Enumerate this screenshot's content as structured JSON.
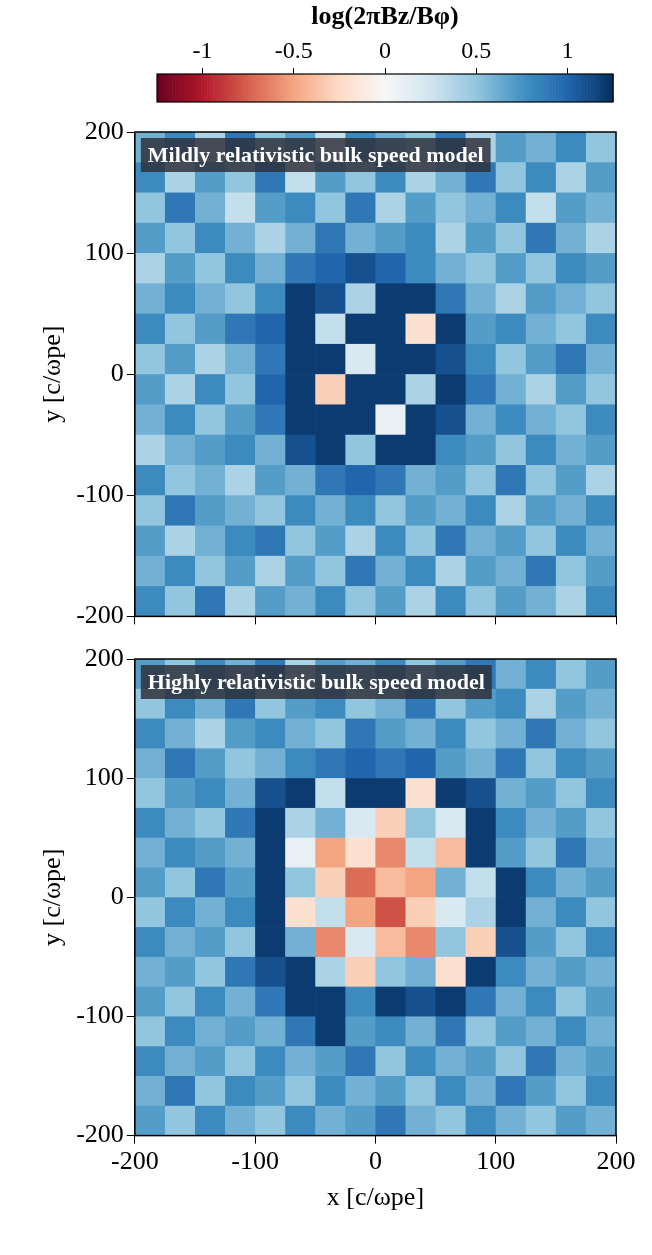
{
  "chart_data": [
    {
      "type": "colorbar",
      "title": "log(2πBz/Bφ)",
      "xlim": [
        -1.25,
        1.25
      ],
      "xticks": [
        -1,
        -0.5,
        0,
        0.5,
        1
      ],
      "colors": [
        "#67001f",
        "#b2182b",
        "#d6604d",
        "#f4a582",
        "#fddbc7",
        "#f7f7f7",
        "#d1e5f0",
        "#92c5de",
        "#4393c3",
        "#2166ac",
        "#053061"
      ]
    },
    {
      "type": "heatmap",
      "title": "Mildly relativistic bulk speed model",
      "ylabel": "y [c/ωpe]",
      "tick_labels": "y",
      "xlim": [
        -200,
        200
      ],
      "xticks": [
        -200,
        -100,
        0,
        100,
        200
      ],
      "ylim": [
        -200,
        200
      ],
      "yticks": [
        -200,
        -100,
        0,
        100,
        200
      ],
      "x": [
        -187.5,
        -162.5,
        -137.5,
        -112.5,
        -87.5,
        -62.5,
        -37.5,
        -12.5,
        12.5,
        37.5,
        62.5,
        87.5,
        112.5,
        137.5,
        162.5,
        187.5
      ],
      "y": [
        187.5,
        162.5,
        137.5,
        112.5,
        87.5,
        62.5,
        37.5,
        12.5,
        -12.5,
        -37.5,
        -62.5,
        -87.5,
        -112.5,
        -137.5,
        -162.5,
        -187.5
      ],
      "z": [
        [
          0.6,
          0.8,
          0.4,
          0.9,
          0.5,
          0.7,
          0.3,
          0.8,
          0.6,
          0.5,
          0.9,
          0.4,
          0.7,
          0.6,
          0.8,
          0.5
        ],
        [
          0.8,
          0.4,
          0.7,
          0.5,
          0.9,
          0.3,
          0.7,
          0.5,
          0.8,
          0.4,
          0.6,
          0.9,
          0.5,
          0.8,
          0.4,
          0.7
        ],
        [
          0.5,
          0.9,
          0.6,
          0.3,
          0.7,
          0.8,
          0.5,
          0.9,
          0.4,
          0.7,
          0.5,
          0.6,
          0.8,
          0.3,
          0.7,
          0.6
        ],
        [
          0.7,
          0.5,
          0.8,
          0.6,
          0.4,
          0.6,
          0.9,
          0.6,
          0.7,
          0.8,
          0.4,
          0.7,
          0.5,
          0.9,
          0.6,
          0.4
        ],
        [
          0.4,
          0.7,
          0.5,
          0.8,
          0.6,
          0.9,
          1.0,
          1.1,
          1.0,
          0.8,
          0.6,
          0.5,
          0.7,
          0.5,
          0.8,
          0.7
        ],
        [
          0.6,
          0.8,
          0.6,
          0.5,
          0.8,
          1.2,
          1.1,
          0.4,
          1.2,
          1.2,
          0.9,
          0.6,
          0.4,
          0.7,
          0.6,
          0.5
        ],
        [
          0.8,
          0.5,
          0.7,
          0.9,
          1.0,
          1.2,
          0.3,
          1.2,
          1.2,
          -0.2,
          1.2,
          0.7,
          0.8,
          0.6,
          0.5,
          0.8
        ],
        [
          0.5,
          0.7,
          0.4,
          0.6,
          0.9,
          1.2,
          1.2,
          0.2,
          1.2,
          1.2,
          1.1,
          0.8,
          0.5,
          0.7,
          0.9,
          0.6
        ],
        [
          0.7,
          0.4,
          0.8,
          0.5,
          1.0,
          1.2,
          -0.3,
          1.2,
          1.2,
          0.4,
          1.2,
          0.9,
          0.6,
          0.4,
          0.7,
          0.5
        ],
        [
          0.6,
          0.8,
          0.5,
          0.7,
          0.9,
          1.2,
          1.2,
          1.2,
          0.1,
          1.2,
          1.1,
          0.6,
          0.8,
          0.6,
          0.5,
          0.8
        ],
        [
          0.4,
          0.6,
          0.7,
          0.8,
          0.6,
          1.1,
          1.2,
          0.5,
          1.2,
          1.2,
          0.8,
          0.7,
          0.5,
          0.8,
          0.6,
          0.7
        ],
        [
          0.8,
          0.5,
          0.6,
          0.4,
          0.7,
          0.6,
          0.9,
          1.0,
          0.9,
          0.6,
          0.7,
          0.5,
          0.9,
          0.5,
          0.7,
          0.4
        ],
        [
          0.5,
          0.9,
          0.7,
          0.6,
          0.5,
          0.8,
          0.6,
          0.8,
          0.5,
          0.7,
          0.6,
          0.8,
          0.4,
          0.7,
          0.6,
          0.8
        ],
        [
          0.7,
          0.4,
          0.6,
          0.8,
          0.9,
          0.5,
          0.7,
          0.4,
          0.8,
          0.5,
          0.9,
          0.6,
          0.7,
          0.5,
          0.8,
          0.6
        ],
        [
          0.6,
          0.8,
          0.5,
          0.7,
          0.4,
          0.7,
          0.5,
          0.9,
          0.6,
          0.8,
          0.4,
          0.7,
          0.6,
          0.9,
          0.5,
          0.7
        ],
        [
          0.8,
          0.5,
          0.9,
          0.4,
          0.7,
          0.6,
          0.8,
          0.5,
          0.7,
          0.4,
          0.8,
          0.5,
          0.7,
          0.6,
          0.4,
          0.8
        ]
      ]
    },
    {
      "type": "heatmap",
      "title": "Highly relativistic bulk speed model",
      "xlabel": "x [c/ωpe]",
      "ylabel": "y [c/ωpe]",
      "xlim": [
        -200,
        200
      ],
      "xticks": [
        -200,
        -100,
        0,
        100,
        200
      ],
      "ylim": [
        -200,
        200
      ],
      "yticks": [
        -200,
        -100,
        0,
        100,
        200
      ],
      "x": [
        -187.5,
        -162.5,
        -137.5,
        -112.5,
        -87.5,
        -62.5,
        -37.5,
        -12.5,
        12.5,
        37.5,
        62.5,
        87.5,
        112.5,
        137.5,
        162.5,
        187.5
      ],
      "y": [
        187.5,
        162.5,
        137.5,
        112.5,
        87.5,
        62.5,
        37.5,
        12.5,
        -12.5,
        -37.5,
        -62.5,
        -87.5,
        -112.5,
        -137.5,
        -162.5,
        -187.5
      ],
      "z": [
        [
          0.7,
          0.5,
          0.8,
          0.6,
          0.9,
          0.4,
          0.7,
          0.6,
          0.8,
          0.5,
          0.7,
          0.9,
          0.6,
          0.8,
          0.5,
          0.7
        ],
        [
          0.5,
          0.8,
          0.6,
          0.9,
          0.5,
          0.7,
          0.8,
          0.5,
          0.6,
          0.9,
          0.5,
          0.7,
          0.8,
          0.4,
          0.7,
          0.6
        ],
        [
          0.8,
          0.6,
          0.4,
          0.7,
          0.8,
          0.6,
          0.5,
          0.9,
          0.7,
          0.6,
          0.8,
          0.5,
          0.6,
          0.9,
          0.6,
          0.5
        ],
        [
          0.6,
          0.9,
          0.7,
          0.5,
          0.6,
          0.8,
          0.9,
          1.0,
          0.9,
          1.0,
          0.7,
          0.6,
          0.9,
          0.5,
          0.8,
          0.7
        ],
        [
          0.5,
          0.7,
          0.8,
          0.6,
          1.1,
          1.2,
          0.3,
          1.2,
          1.2,
          -0.2,
          1.2,
          1.1,
          0.6,
          0.7,
          0.5,
          0.8
        ],
        [
          0.8,
          0.6,
          0.5,
          0.9,
          1.2,
          0.4,
          0.6,
          0.2,
          -0.3,
          0.5,
          0.2,
          1.2,
          0.8,
          0.6,
          0.7,
          0.5
        ],
        [
          0.6,
          0.8,
          0.7,
          0.6,
          1.2,
          0.1,
          -0.5,
          -0.2,
          -0.6,
          0.3,
          -0.4,
          1.2,
          0.7,
          0.5,
          0.9,
          0.6
        ],
        [
          0.7,
          0.5,
          0.9,
          0.7,
          1.2,
          0.5,
          -0.3,
          -0.7,
          -0.4,
          -0.5,
          0.6,
          0.3,
          1.2,
          0.8,
          0.6,
          0.7
        ],
        [
          0.5,
          0.8,
          0.6,
          0.8,
          1.2,
          -0.2,
          0.3,
          -0.5,
          -0.8,
          -0.3,
          0.2,
          0.4,
          1.2,
          0.6,
          0.8,
          0.5
        ],
        [
          0.8,
          0.6,
          0.7,
          0.5,
          1.2,
          0.6,
          -0.6,
          0.2,
          -0.4,
          -0.6,
          0.5,
          -0.3,
          1.1,
          0.7,
          0.5,
          0.8
        ],
        [
          0.6,
          0.7,
          0.5,
          0.9,
          1.1,
          1.2,
          0.4,
          -0.3,
          0.5,
          0.6,
          -0.2,
          1.2,
          0.8,
          0.6,
          0.7,
          0.6
        ],
        [
          0.7,
          0.5,
          0.8,
          0.6,
          0.9,
          1.2,
          1.2,
          0.8,
          1.2,
          1.1,
          1.2,
          0.9,
          0.6,
          0.8,
          0.5,
          0.7
        ],
        [
          0.5,
          0.8,
          0.6,
          0.7,
          0.6,
          0.9,
          1.2,
          0.7,
          0.8,
          0.6,
          0.9,
          0.5,
          0.7,
          0.6,
          0.8,
          0.6
        ],
        [
          0.8,
          0.6,
          0.7,
          0.5,
          0.8,
          0.6,
          0.7,
          0.9,
          0.5,
          0.8,
          0.6,
          0.7,
          0.5,
          0.9,
          0.6,
          0.7
        ],
        [
          0.6,
          0.9,
          0.5,
          0.8,
          0.7,
          0.5,
          0.8,
          0.6,
          0.7,
          0.5,
          0.8,
          0.6,
          0.9,
          0.7,
          0.5,
          0.8
        ],
        [
          0.7,
          0.5,
          0.8,
          0.6,
          0.5,
          0.8,
          0.6,
          0.7,
          0.9,
          0.6,
          0.5,
          0.8,
          0.6,
          0.5,
          0.7,
          0.6
        ]
      ]
    }
  ]
}
